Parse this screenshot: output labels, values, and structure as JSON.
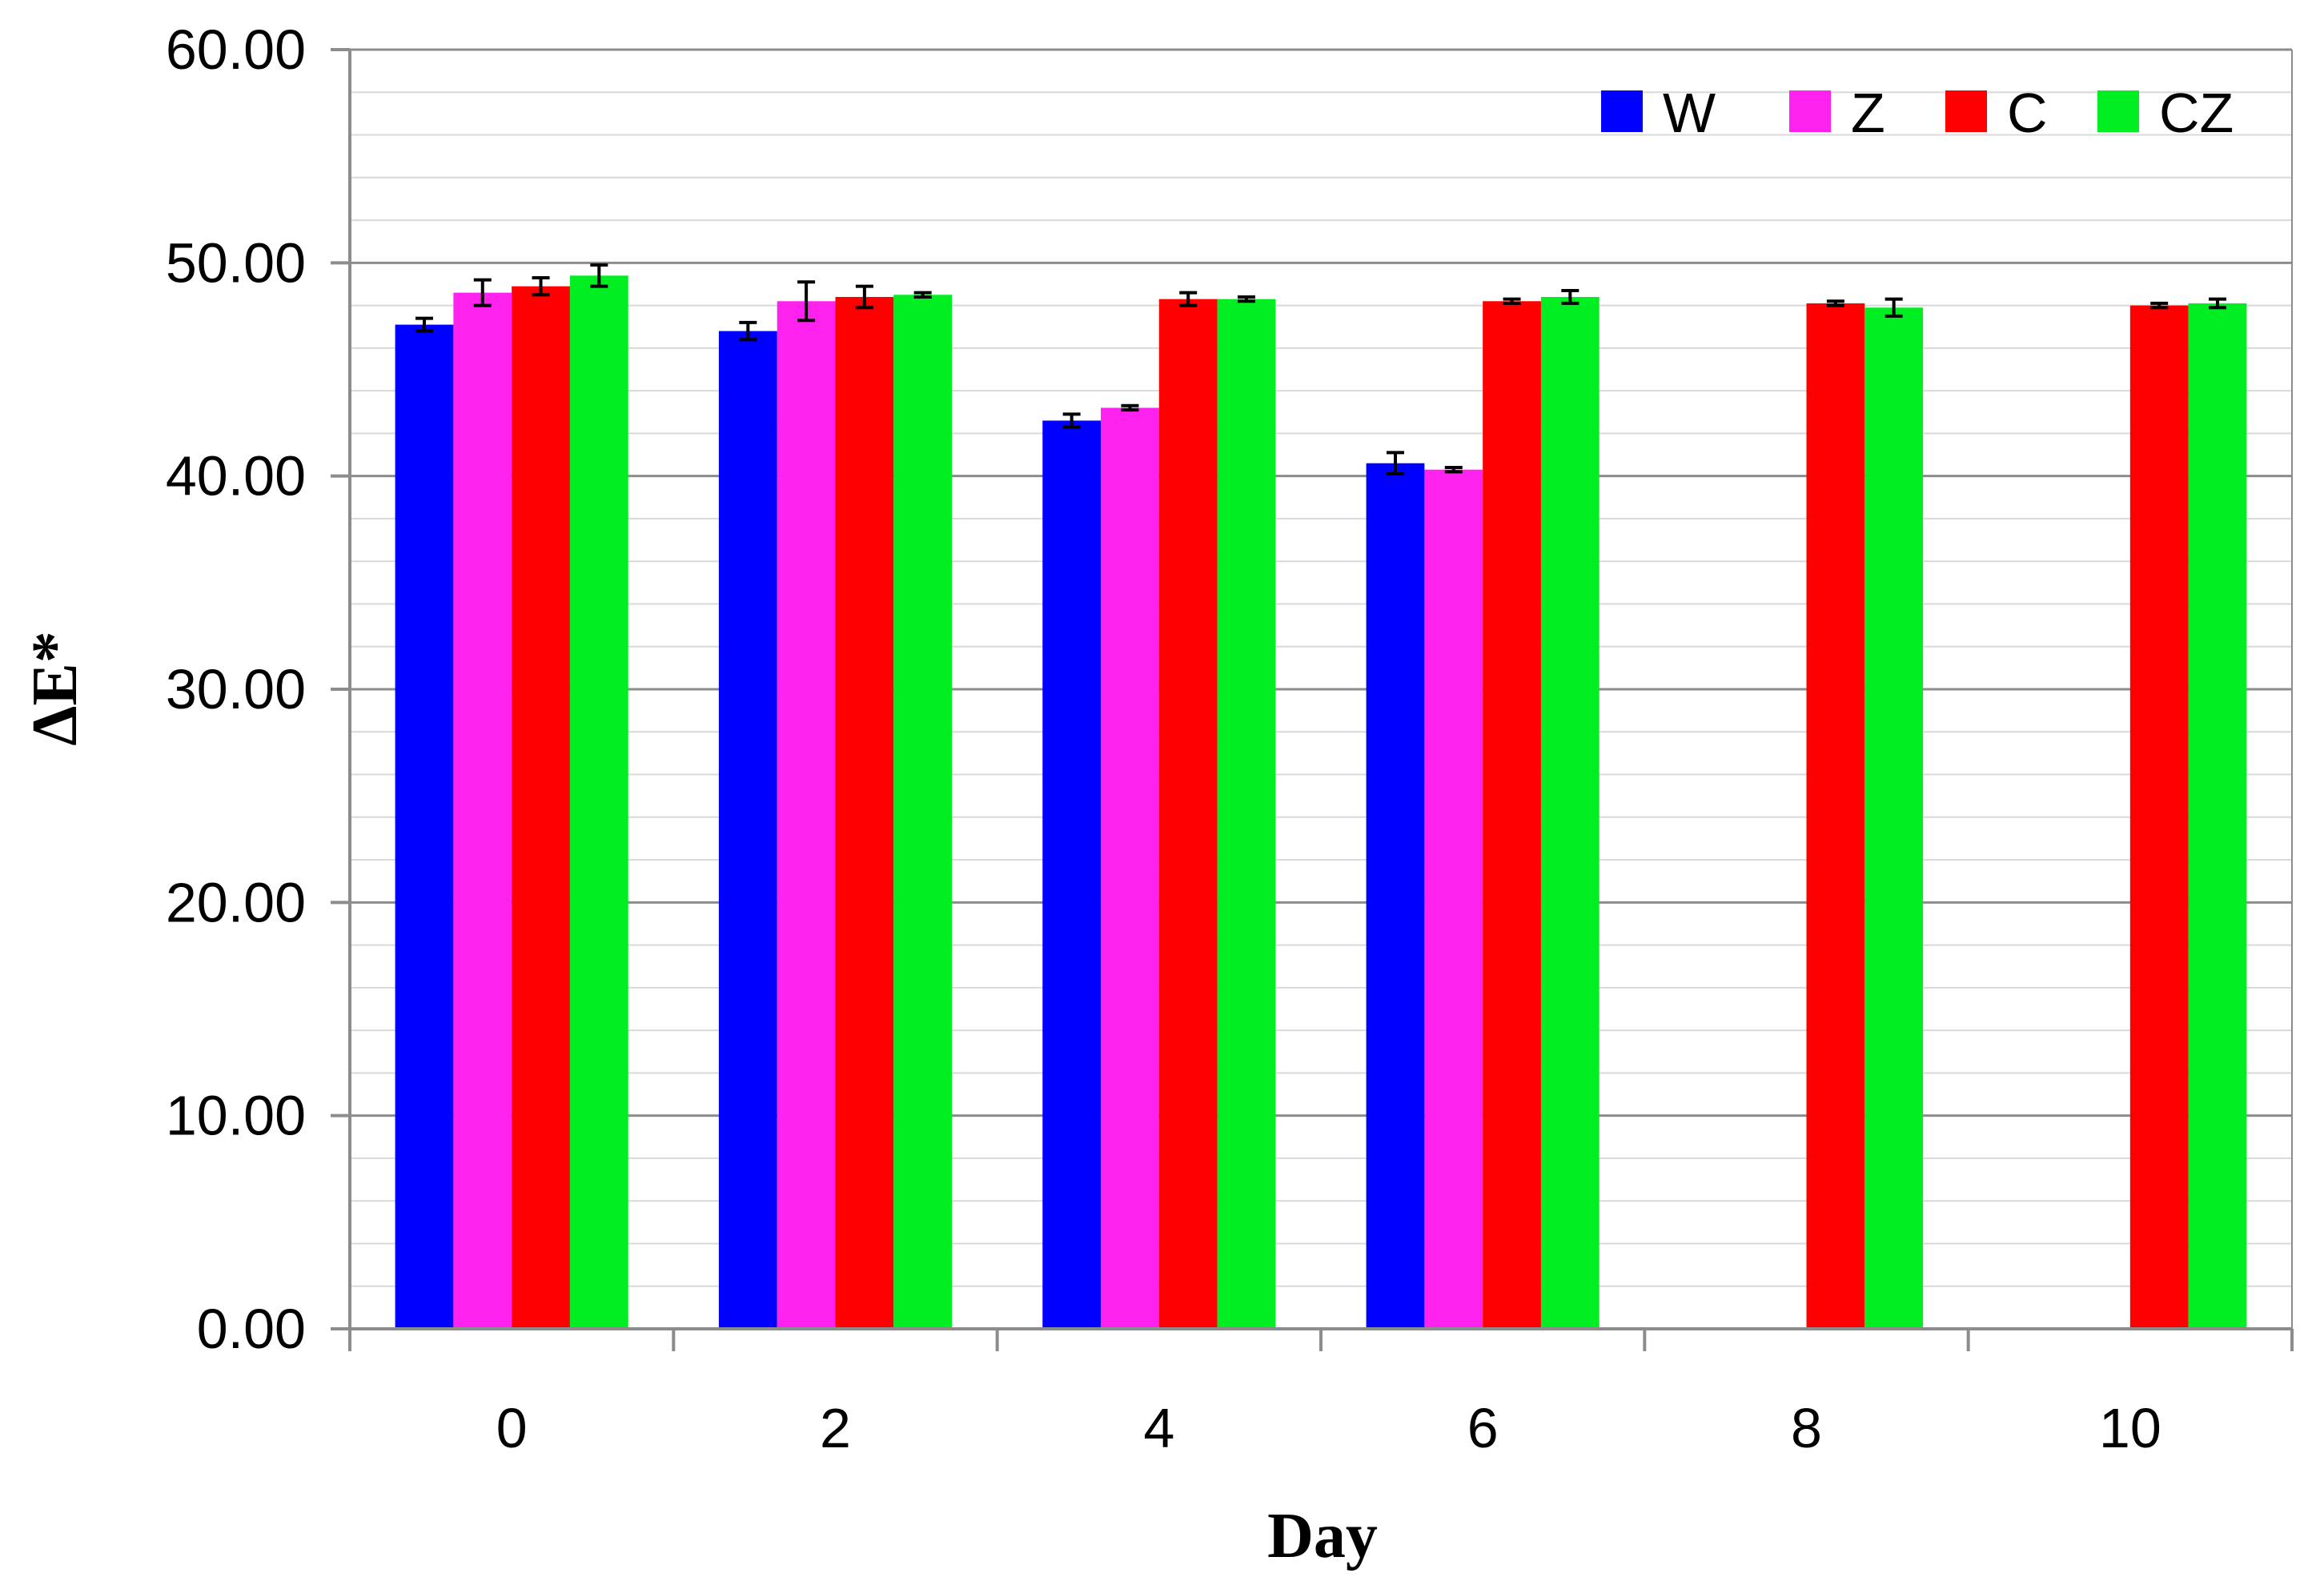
{
  "chart_data": {
    "type": "bar",
    "title": "",
    "xlabel": "Day",
    "ylabel": "ΔE*",
    "categories": [
      "0",
      "2",
      "4",
      "6",
      "8",
      "10"
    ],
    "ylim": [
      0,
      60
    ],
    "y_ticks": [
      "0.00",
      "10.00",
      "20.00",
      "30.00",
      "40.00",
      "50.00",
      "60.00"
    ],
    "major_grid_step": 10,
    "minor_grid_step": 2,
    "grid": true,
    "legend_position": "top-right",
    "series": [
      {
        "name": "W",
        "color": "#0000ff",
        "values": [
          47.1,
          46.8,
          42.6,
          40.6,
          null,
          null
        ],
        "errors": [
          0.3,
          0.4,
          0.3,
          0.5,
          null,
          null
        ]
      },
      {
        "name": "Z",
        "color": "#ff22ee",
        "values": [
          48.6,
          48.2,
          43.2,
          40.3,
          null,
          null
        ],
        "errors": [
          0.6,
          0.9,
          0.1,
          0.1,
          null,
          null
        ]
      },
      {
        "name": "C",
        "color": "#ff0000",
        "values": [
          48.9,
          48.4,
          48.3,
          48.2,
          48.1,
          48.0
        ],
        "errors": [
          0.4,
          0.5,
          0.3,
          0.1,
          0.1,
          0.1
        ]
      },
      {
        "name": "CZ",
        "color": "#00ee22",
        "values": [
          49.4,
          48.5,
          48.3,
          48.4,
          47.9,
          48.1
        ],
        "errors": [
          0.5,
          0.1,
          0.1,
          0.3,
          0.4,
          0.2
        ]
      }
    ]
  }
}
